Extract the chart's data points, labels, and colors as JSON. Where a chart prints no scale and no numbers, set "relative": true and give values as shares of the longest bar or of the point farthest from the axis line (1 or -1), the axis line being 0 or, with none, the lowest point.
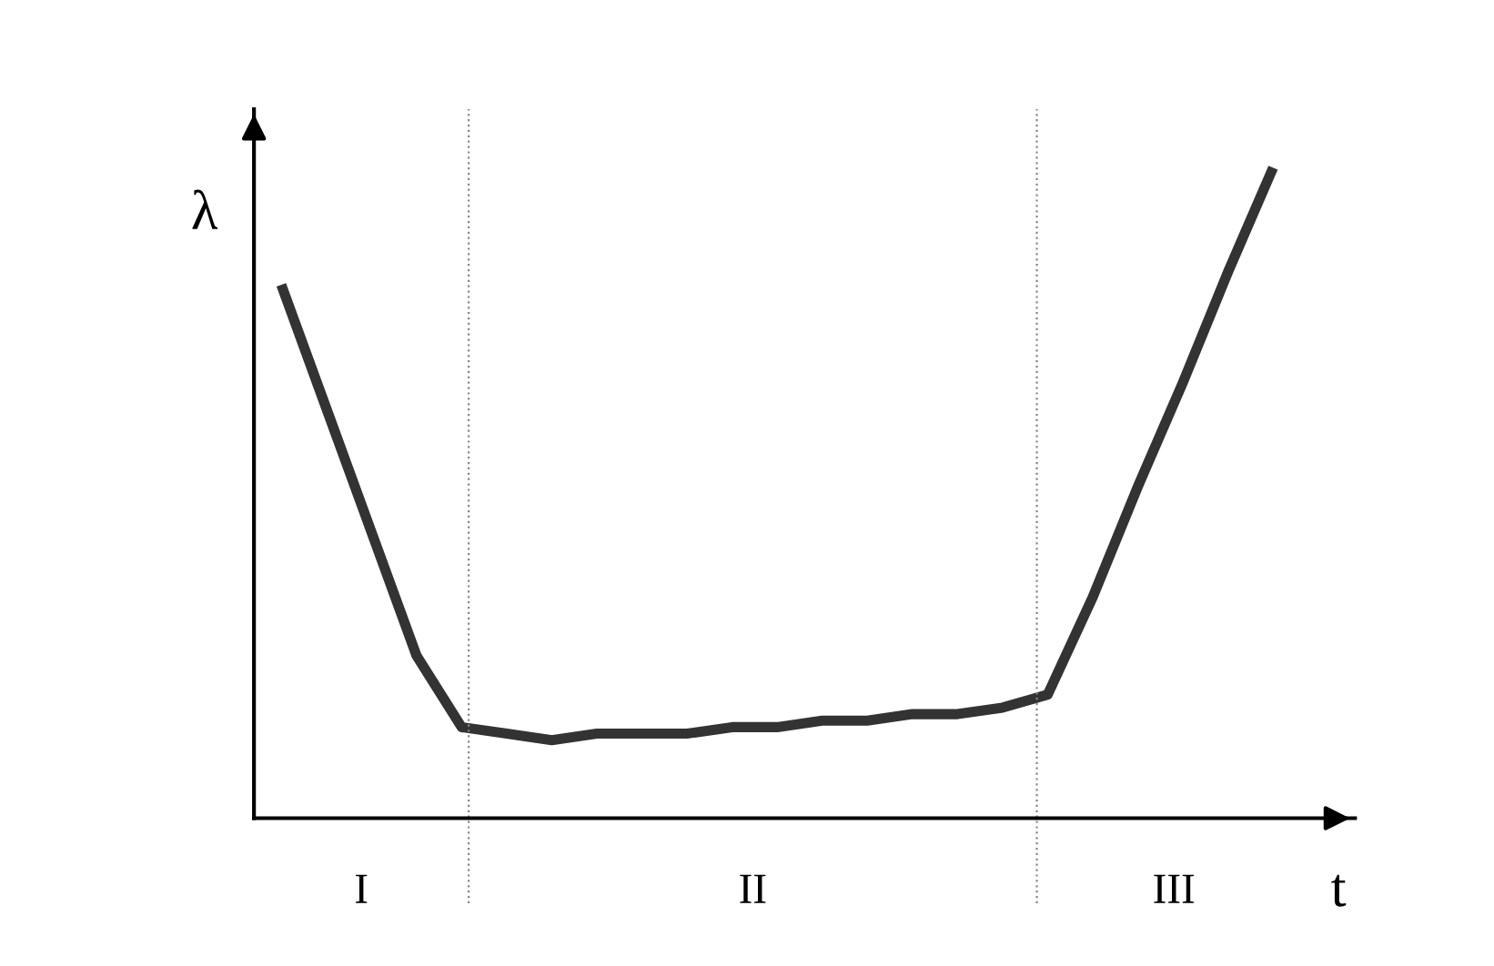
{
  "chart_data": {
    "type": "line",
    "relative": true,
    "xlabel": "t",
    "ylabel": "λ",
    "categories": [
      null,
      null,
      null,
      null,
      null,
      null,
      null,
      null,
      null,
      null,
      null,
      null,
      null,
      null,
      null,
      null,
      null,
      null,
      null,
      null,
      null,
      null,
      null
    ],
    "series": [
      {
        "color": "#333333",
        "values": [
          0.82,
          0.63,
          0.44,
          0.25,
          0.14,
          0.13,
          0.12,
          0.13,
          0.13,
          0.13,
          0.14,
          0.14,
          0.15,
          0.15,
          0.16,
          0.16,
          0.17,
          0.19,
          0.34,
          0.51,
          0.67,
          0.84,
          1.0
        ]
      }
    ],
    "annotations": [
      "I",
      "II",
      "III"
    ],
    "grid": false,
    "marker": "none",
    "line_style": "solid"
  }
}
